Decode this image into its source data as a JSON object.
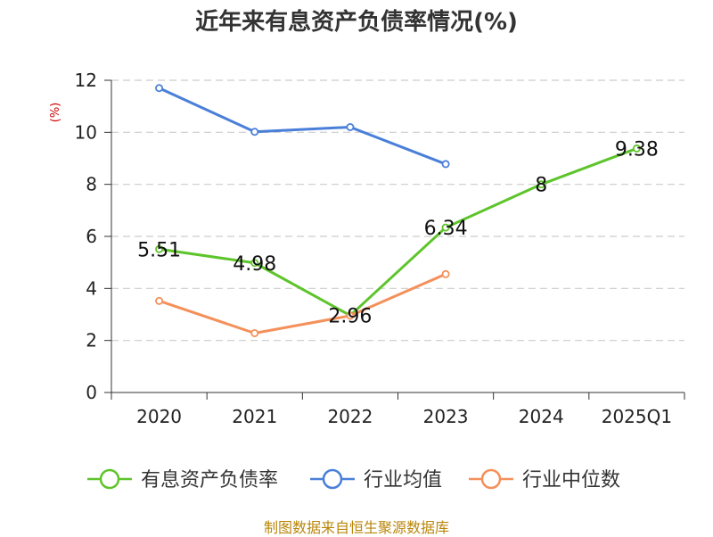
{
  "title": "近年来有息资产负债率情况(%)",
  "source": "制图数据来自恒生聚源数据库",
  "chart_data": {
    "type": "line",
    "title": "近年来有息资产负债率情况(%)",
    "xlabel": "",
    "ylabel": "(%)",
    "categories": [
      "2020",
      "2021",
      "2022",
      "2023",
      "2024",
      "2025Q1"
    ],
    "ylim": [
      0,
      12
    ],
    "yticks": [
      0,
      2,
      4,
      6,
      8,
      10,
      12
    ],
    "grid": true,
    "legend_position": "bottom",
    "series": [
      {
        "name": "有息资产负债率",
        "color": "#5ec42b",
        "values": [
          5.51,
          4.98,
          2.96,
          6.34,
          8,
          9.38
        ],
        "labels": [
          "5.51",
          "4.98",
          "2.96",
          "6.34",
          "8",
          "9.38"
        ]
      },
      {
        "name": "行业均值",
        "color": "#4a7fd9",
        "values": [
          11.7,
          10.02,
          10.2,
          8.78,
          null,
          null
        ],
        "labels": null
      },
      {
        "name": "行业中位数",
        "color": "#f4905a",
        "values": [
          3.52,
          2.28,
          2.95,
          4.55,
          null,
          null
        ],
        "labels": null
      }
    ]
  }
}
